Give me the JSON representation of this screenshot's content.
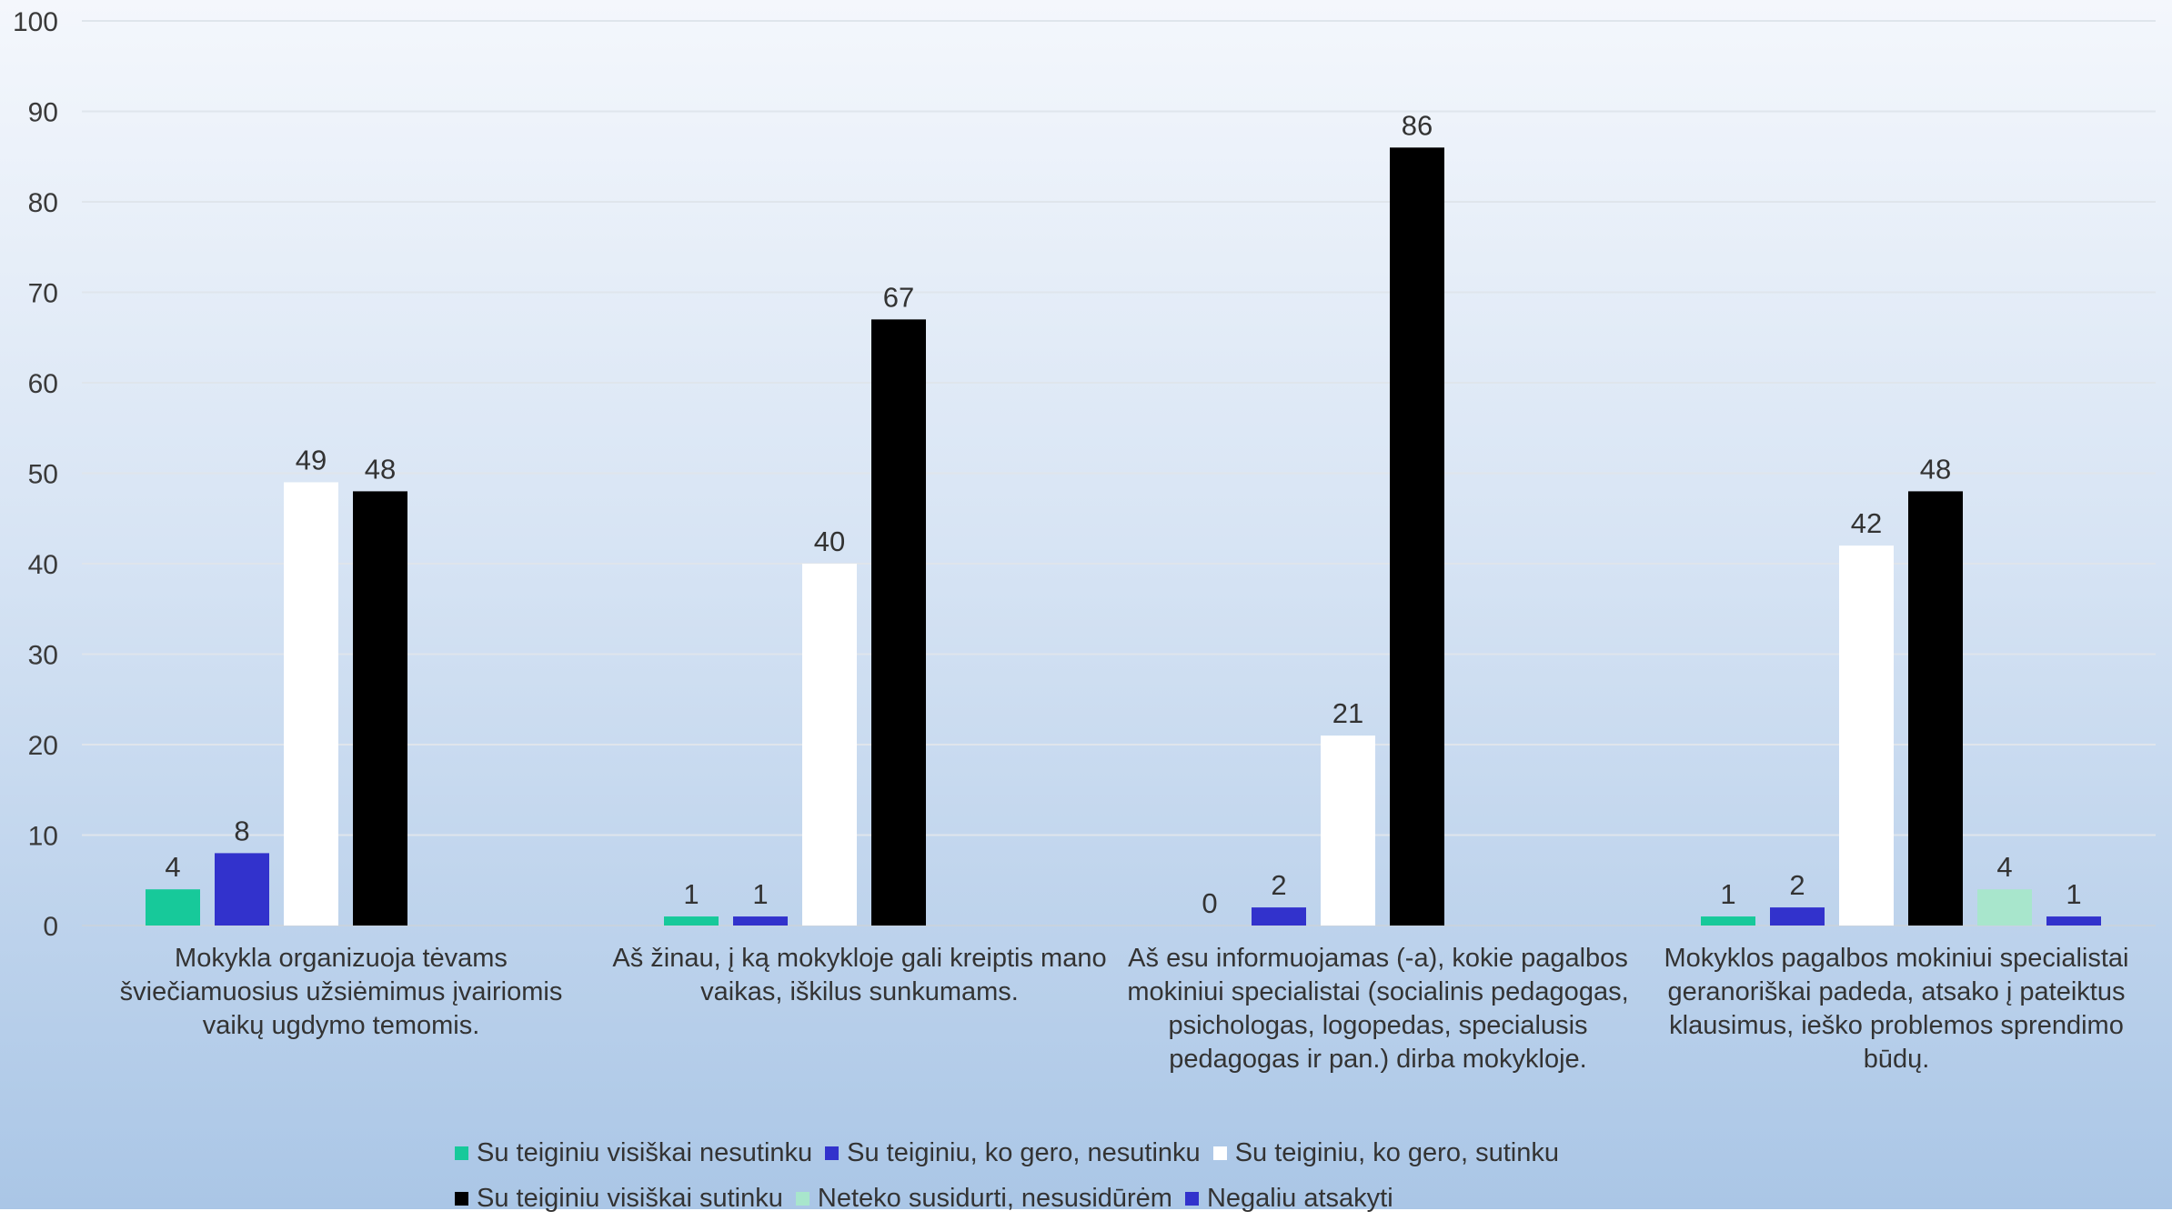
{
  "chart_data": {
    "type": "bar",
    "categories": [
      "Mokykla organizuoja tėvams šviečiamuosius užsiėmimus įvairiomis vaikų ugdymo temomis.",
      "Aš žinau, į ką mokykloje gali kreiptis mano vaikas, iškilus sunkumams.",
      "Aš esu informuojamas (-a), kokie pagalbos mokiniui specialistai (socialinis pedagogas, psichologas, logopedas, specialusis pedagogas ir pan.) dirba mokykloje.",
      "Mokyklos pagalbos mokiniui specialistai geranoriškai padeda, atsako į  pateiktus klausimus, ieško problemos sprendimo būdų."
    ],
    "series": [
      {
        "name": "Su teiginiu visiškai nesutinku",
        "color": "#17c99a",
        "values": [
          4,
          1,
          0,
          1
        ]
      },
      {
        "name": "Su teiginiu, ko gero, nesutinku",
        "color": "#3232cc",
        "values": [
          8,
          1,
          2,
          2
        ]
      },
      {
        "name": "Su teiginiu, ko gero, sutinku",
        "color": "#ffffff",
        "values": [
          49,
          40,
          21,
          42
        ]
      },
      {
        "name": "Su teiginiu visiškai sutinku",
        "color": "#000000",
        "values": [
          48,
          67,
          86,
          48
        ]
      },
      {
        "name": "Neteko susidurti, nesusidūrėm",
        "color": "#a8e6cc",
        "values": [
          null,
          null,
          null,
          4
        ]
      },
      {
        "name": "Negaliu atsakyti",
        "color": "#3232cc",
        "values": [
          null,
          null,
          null,
          1
        ]
      }
    ],
    "yticks": [
      0,
      10,
      20,
      30,
      40,
      50,
      60,
      70,
      80,
      90,
      100
    ],
    "ylim": [
      0,
      100
    ],
    "grid": true,
    "legend_position": "bottom"
  }
}
